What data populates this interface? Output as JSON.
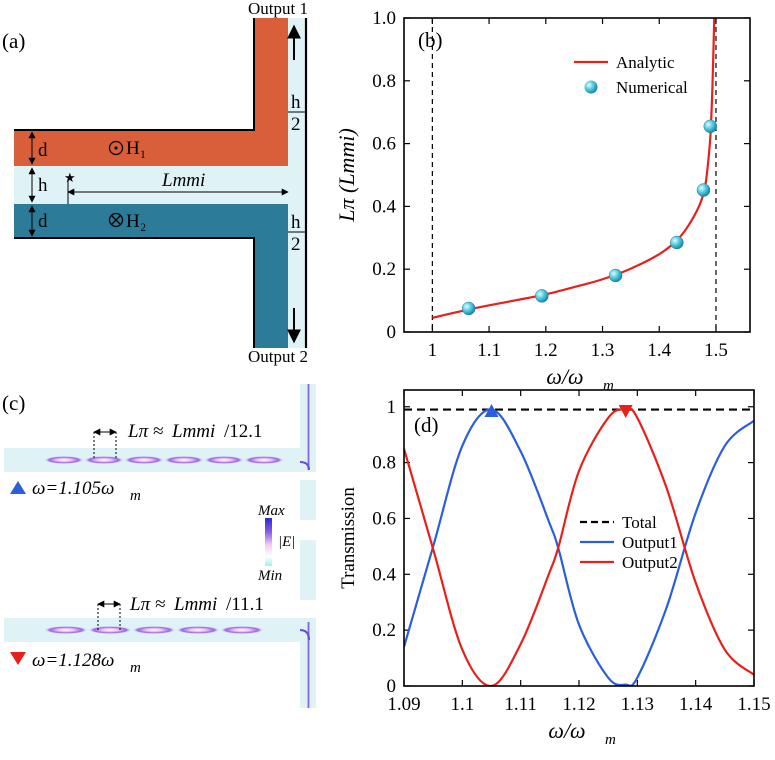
{
  "panel_a": {
    "label": "(a)",
    "output1": "Output 1",
    "output2": "Output 2",
    "d_top": "d",
    "d_bottom": "d",
    "h": "h",
    "h_frac_num_1": "h",
    "h_frac_den_1": "2",
    "h_frac_num_2": "h",
    "h_frac_den_2": "2",
    "L_label": "Lmmi",
    "H1": "H₁",
    "H2": "H₂",
    "colors": {
      "top_guide": "#d95f3b",
      "bottom_guide": "#2c7c99",
      "gap": "#dff3f7"
    }
  },
  "panel_c": {
    "label": "(c)",
    "top_formula_L": "Lπ ≈",
    "top_formula_mmi": "Lmmi",
    "top_formula_ratio": "/12.1",
    "top_freq": "ω=1.105ω",
    "top_freq_sub": "m",
    "bottom_formula_L": "Lπ ≈",
    "bottom_formula_mmi": "Lmmi",
    "bottom_formula_ratio": "/11.1",
    "bottom_freq": "ω=1.128ω",
    "bottom_freq_sub": "m",
    "colorbar_max": "Max",
    "colorbar_min": "Min",
    "colorbar_label": "|E|"
  },
  "chart_data": [
    {
      "panel": "(b)",
      "type": "line",
      "xlabel": "ω/ω",
      "xlabel_sub": "m",
      "ylabel": "Lπ (Lmmi)",
      "xlim": [
        0.95,
        1.56
      ],
      "ylim": [
        0,
        1.0
      ],
      "xticks": [
        1,
        1.1,
        1.2,
        1.3,
        1.4,
        1.5
      ],
      "xtick_labels": [
        "1",
        "1.1",
        "1.2",
        "1.3",
        "1.4",
        "1.5"
      ],
      "yticks": [
        0,
        0.2,
        0.4,
        0.6,
        0.8,
        1.0
      ],
      "ytick_labels": [
        "0",
        "0.2",
        "0.4",
        "0.6",
        "0.8",
        "1.0"
      ],
      "vlines": [
        1.0,
        1.5
      ],
      "legend_position": "top-right",
      "series": [
        {
          "name": "Analytic",
          "color": "#e8201c",
          "x": [
            1.0,
            1.03,
            1.06,
            1.1,
            1.15,
            1.2,
            1.25,
            1.3,
            1.35,
            1.4,
            1.43,
            1.45,
            1.47,
            1.48,
            1.485,
            1.49,
            1.493,
            1.495,
            1.497
          ],
          "y": [
            0.045,
            0.058,
            0.07,
            0.085,
            0.102,
            0.12,
            0.143,
            0.168,
            0.202,
            0.248,
            0.29,
            0.335,
            0.4,
            0.455,
            0.52,
            0.62,
            0.74,
            0.86,
            1.0
          ]
        },
        {
          "name": "Numerical",
          "color": "#3cc4dc",
          "marker": "sphere",
          "x": [
            1.064,
            1.193,
            1.323,
            1.431,
            1.478,
            1.49
          ],
          "y": [
            0.075,
            0.115,
            0.18,
            0.285,
            0.452,
            0.655
          ]
        }
      ]
    },
    {
      "panel": "(d)",
      "type": "line",
      "xlabel": "ω/ω",
      "xlabel_sub": "m",
      "ylabel": "Transmission",
      "xlim": [
        1.09,
        1.15
      ],
      "ylim": [
        0,
        1.06
      ],
      "xticks": [
        1.09,
        1.1,
        1.11,
        1.12,
        1.13,
        1.14,
        1.15
      ],
      "xtick_labels": [
        "1.09",
        "1.1",
        "1.11",
        "1.12",
        "1.13",
        "1.14",
        "1.15"
      ],
      "yticks": [
        0,
        0.2,
        0.4,
        0.6,
        0.8,
        1
      ],
      "ytick_labels": [
        "0",
        "0.2",
        "0.4",
        "0.6",
        "0.8",
        "1"
      ],
      "legend_position": "center-right",
      "series": [
        {
          "name": "Total",
          "color": "#000000",
          "dash": true,
          "x": [
            1.09,
            1.15
          ],
          "y": [
            0.99,
            0.99
          ]
        },
        {
          "name": "Output1",
          "color": "#2b5fd9",
          "x": [
            1.09,
            1.095,
            1.1,
            1.105,
            1.11,
            1.115,
            1.1165,
            1.12,
            1.125,
            1.128,
            1.13,
            1.135,
            1.14,
            1.145,
            1.15
          ],
          "y": [
            0.14,
            0.5,
            0.86,
            0.99,
            0.84,
            0.58,
            0.49,
            0.22,
            0.03,
            0.005,
            0.03,
            0.28,
            0.62,
            0.86,
            0.95
          ]
        },
        {
          "name": "Output2",
          "color": "#e8201c",
          "x": [
            1.09,
            1.095,
            1.1,
            1.105,
            1.11,
            1.115,
            1.1165,
            1.12,
            1.125,
            1.128,
            1.13,
            1.135,
            1.14,
            1.145,
            1.15
          ],
          "y": [
            0.85,
            0.49,
            0.13,
            0.0,
            0.15,
            0.41,
            0.5,
            0.77,
            0.96,
            0.99,
            0.96,
            0.71,
            0.37,
            0.13,
            0.04
          ]
        }
      ],
      "markers": [
        {
          "shape": "triangle-up",
          "color": "#2b5fd9",
          "x": 1.105,
          "y": 0.985
        },
        {
          "shape": "triangle-down",
          "color": "#e8201c",
          "x": 1.128,
          "y": 0.985
        }
      ]
    }
  ]
}
